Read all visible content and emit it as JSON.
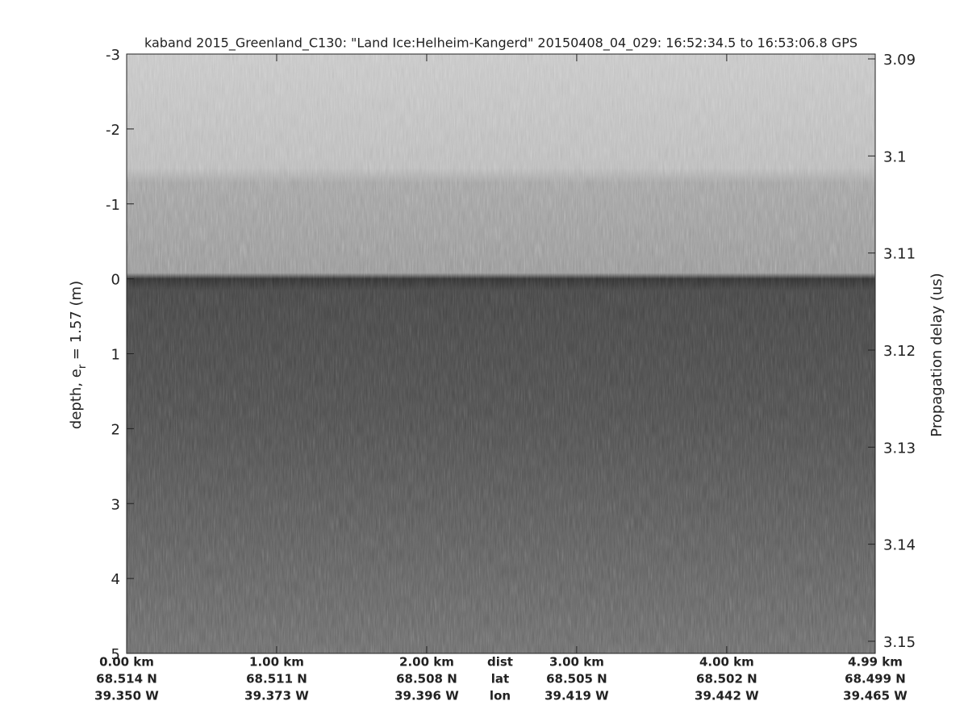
{
  "chart_data": {
    "type": "echogram",
    "title": "kaband 2015_Greenland_C130: \"Land Ice:Helheim-Kangerd\"  20150408_04_029: 16:52:34.5 to 16:53:06.8 GPS",
    "ylabel": {
      "main": "depth, e",
      "sub": "r",
      "rest": " = 1.57 (m)"
    },
    "y2label": "Propagation delay (us)",
    "ylim": [
      -3,
      5
    ],
    "yticks": [
      -3,
      -2,
      -1,
      0,
      1,
      2,
      3,
      4,
      5
    ],
    "y2lim": [
      3.0895,
      3.15125
    ],
    "y2ticks": [
      3.09,
      3.1,
      3.11,
      3.12,
      3.13,
      3.14,
      3.15
    ],
    "xlim": [
      0,
      4.99
    ],
    "xticks": [
      {
        "value": 0,
        "label": "0.00 km"
      },
      {
        "value": 1,
        "label": "1.00 km"
      },
      {
        "value": 2,
        "label": "2.00 km"
      },
      {
        "value": 3,
        "label": "3.00 km"
      },
      {
        "value": 4,
        "label": "4.00 km"
      },
      {
        "value": 4.99,
        "label": "4.99 km"
      }
    ],
    "lat_labels": [
      "68.514 N",
      "68.511 N",
      "68.508 N",
      "68.505 N",
      "68.502 N",
      "68.499 N"
    ],
    "lon_labels": [
      "39.350 W",
      "39.373 W",
      "39.396 W",
      "39.419 W",
      "39.442 W",
      "39.465 W"
    ],
    "row_labels": [
      "dist",
      "lat",
      "lon"
    ]
  }
}
